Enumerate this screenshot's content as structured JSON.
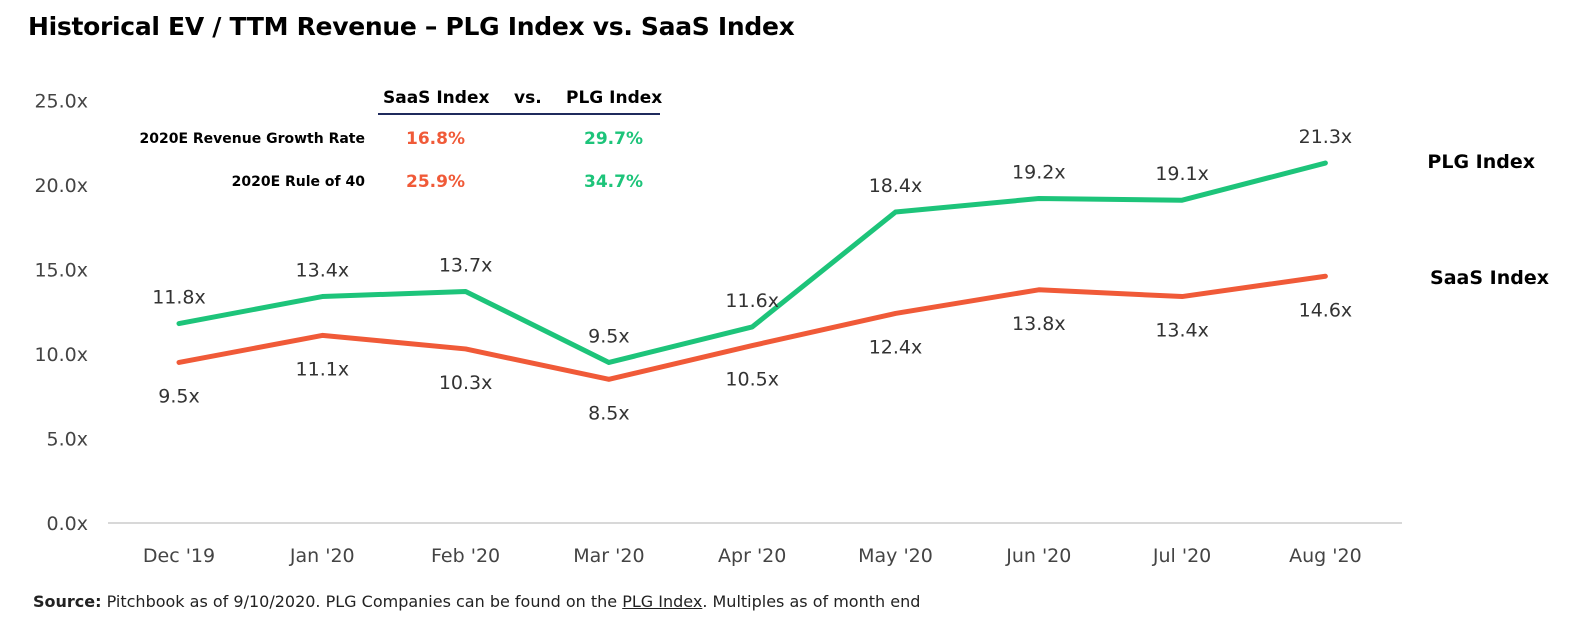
{
  "title": "Historical EV / TTM Revenue – PLG Index vs. SaaS Index",
  "table": {
    "col1": "SaaS Index",
    "vs": "vs.",
    "col2": "PLG Index",
    "rows": [
      {
        "label": "2020E Revenue Growth Rate",
        "saas": "16.8%",
        "plg": "29.7%"
      },
      {
        "label": "2020E Rule of 40",
        "saas": "25.9%",
        "plg": "34.7%"
      }
    ]
  },
  "colors": {
    "plg": "#1dc47a",
    "saas": "#f05a38",
    "axis": "#cccccc"
  },
  "chart_data": {
    "type": "line",
    "categories": [
      "Dec '19",
      "Jan '20",
      "Feb '20",
      "Mar '20",
      "Apr '20",
      "May '20",
      "Jun '20",
      "Jul '20",
      "Aug '20"
    ],
    "series": [
      {
        "name": "PLG Index",
        "values": [
          11.8,
          13.4,
          13.7,
          9.5,
          11.6,
          18.4,
          19.2,
          19.1,
          21.3
        ],
        "labels": [
          "11.8x",
          "13.4x",
          "13.7x",
          "9.5x",
          "11.6x",
          "18.4x",
          "19.2x",
          "19.1x",
          "21.3x"
        ]
      },
      {
        "name": "SaaS Index",
        "values": [
          9.5,
          11.1,
          10.3,
          8.5,
          10.5,
          12.4,
          13.8,
          13.4,
          14.6
        ],
        "labels": [
          "9.5x",
          "11.1x",
          "10.3x",
          "8.5x",
          "10.5x",
          "12.4x",
          "13.8x",
          "13.4x",
          "14.6x"
        ]
      }
    ],
    "yticks": [
      "0.0x",
      "5.0x",
      "10.0x",
      "15.0x",
      "20.0x",
      "25.0x"
    ],
    "ylim": [
      0,
      25
    ],
    "grid": false
  },
  "source": {
    "label": "Source:",
    "text1": " Pitchbook as of 9/10/2020. PLG Companies can be found on the ",
    "link": "PLG Index",
    "text2": ". Multiples as of month end"
  }
}
